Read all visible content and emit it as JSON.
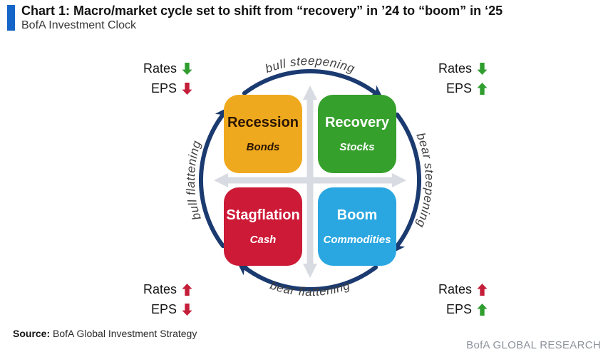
{
  "header": {
    "title": "Chart 1: Macro/market cycle set to shift from “recovery” in ’24 to “boom” in ‘25",
    "subtitle": "BofA Investment Clock"
  },
  "clock": {
    "quadrants": [
      {
        "id": "recession",
        "phase": "Recession",
        "asset": "Bonds",
        "color": "#EFA91E",
        "text_color": "#2a1604"
      },
      {
        "id": "recovery",
        "phase": "Recovery",
        "asset": "Stocks",
        "color": "#36A02C",
        "text_color": "#ffffff"
      },
      {
        "id": "stagflation",
        "phase": "Stagflation",
        "asset": "Cash",
        "color": "#CC1A37",
        "text_color": "#ffffff"
      },
      {
        "id": "boom",
        "phase": "Boom",
        "asset": "Commodities",
        "color": "#2AA7E0",
        "text_color": "#ffffff"
      }
    ],
    "transitions": {
      "top": "bull steepening",
      "right": "bear steepening",
      "bottom": "bear flattening",
      "left": "bull flattening"
    },
    "corners": {
      "tl": {
        "rates": {
          "label": "Rates",
          "dir": "down",
          "color": "#2F9E2F"
        },
        "eps": {
          "label": "EPS",
          "dir": "down",
          "color": "#C41E3A"
        }
      },
      "tr": {
        "rates": {
          "label": "Rates",
          "dir": "down",
          "color": "#2F9E2F"
        },
        "eps": {
          "label": "EPS",
          "dir": "up",
          "color": "#2F9E2F"
        }
      },
      "bl": {
        "rates": {
          "label": "Rates",
          "dir": "up",
          "color": "#C41E3A"
        },
        "eps": {
          "label": "EPS",
          "dir": "down",
          "color": "#C41E3A"
        }
      },
      "br": {
        "rates": {
          "label": "Rates",
          "dir": "up",
          "color": "#C41E3A"
        },
        "eps": {
          "label": "EPS",
          "dir": "up",
          "color": "#2F9E2F"
        }
      }
    }
  },
  "footer": {
    "source_label": "Source:",
    "source_text": " BofA Global Investment Strategy",
    "brand": "BofA GLOBAL RESEARCH"
  },
  "colors": {
    "title_bar": "#1565C8",
    "navy": "#1A3A70",
    "axis": "#D8DBE1",
    "label_gray": "#3F3F3F",
    "brand_gray": "#8D929C"
  }
}
